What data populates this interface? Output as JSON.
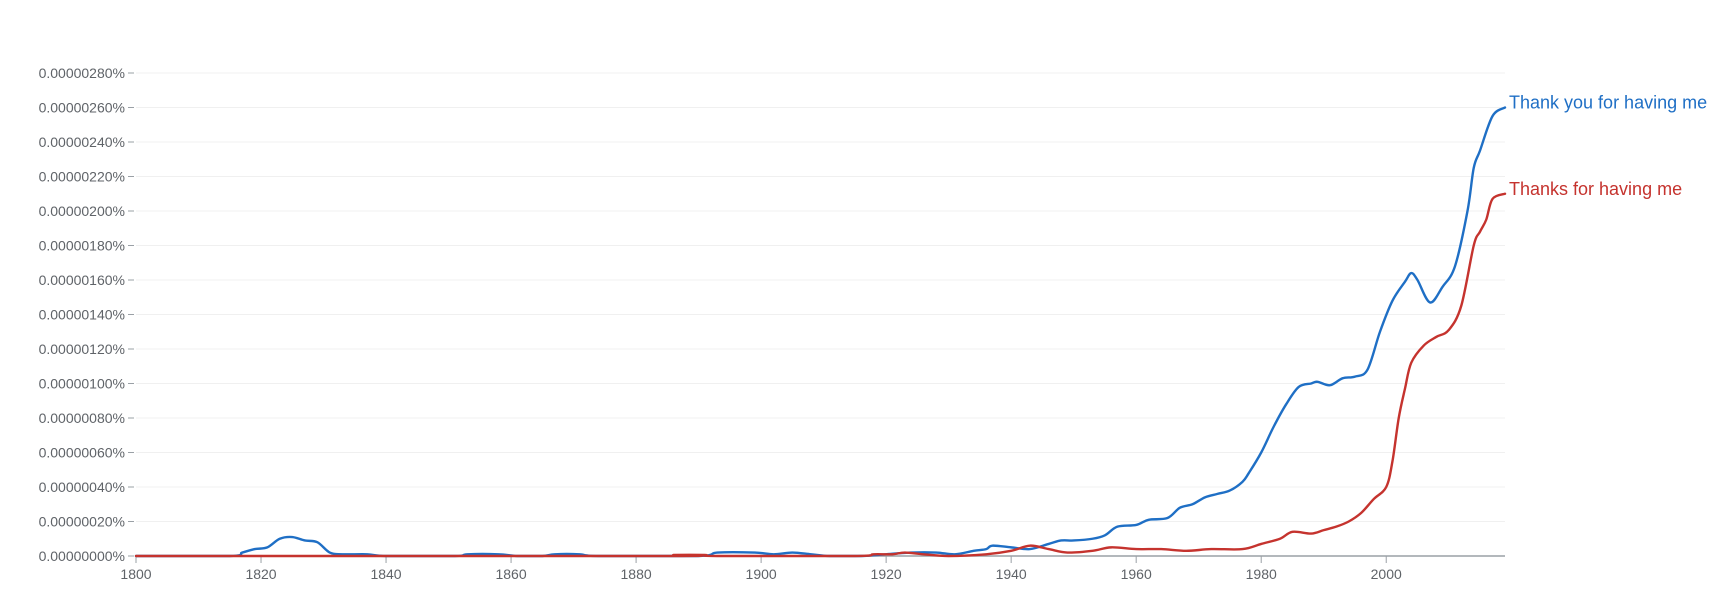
{
  "chart_data": {
    "type": "line",
    "title": "",
    "xlabel": "",
    "ylabel": "",
    "xlim": [
      1800,
      2019
    ],
    "ylim": [
      0,
      2.8e-06
    ],
    "grid": true,
    "legend": "labels at right end of lines",
    "y_ticks": [
      {
        "value": 0.0,
        "label": "0.00000000%"
      },
      {
        "value": 2e-07,
        "label": "0.00000020%"
      },
      {
        "value": 4e-07,
        "label": "0.00000040%"
      },
      {
        "value": 6e-07,
        "label": "0.00000060%"
      },
      {
        "value": 8e-07,
        "label": "0.00000080%"
      },
      {
        "value": 1e-06,
        "label": "0.00000100%"
      },
      {
        "value": 1.2e-06,
        "label": "0.00000120%"
      },
      {
        "value": 1.4e-06,
        "label": "0.00000140%"
      },
      {
        "value": 1.6e-06,
        "label": "0.00000160%"
      },
      {
        "value": 1.8e-06,
        "label": "0.00000180%"
      },
      {
        "value": 2e-06,
        "label": "0.00000200%"
      },
      {
        "value": 2.2e-06,
        "label": "0.00000220%"
      },
      {
        "value": 2.4e-06,
        "label": "0.00000240%"
      },
      {
        "value": 2.6e-06,
        "label": "0.00000260%"
      },
      {
        "value": 2.8e-06,
        "label": "0.00000280%"
      }
    ],
    "x_ticks": [
      {
        "value": 1800,
        "label": "1800"
      },
      {
        "value": 1820,
        "label": "1820"
      },
      {
        "value": 1840,
        "label": "1840"
      },
      {
        "value": 1860,
        "label": "1860"
      },
      {
        "value": 1880,
        "label": "1880"
      },
      {
        "value": 1900,
        "label": "1900"
      },
      {
        "value": 1920,
        "label": "1920"
      },
      {
        "value": 1940,
        "label": "1940"
      },
      {
        "value": 1960,
        "label": "1960"
      },
      {
        "value": 1980,
        "label": "1980"
      },
      {
        "value": 2000,
        "label": "2000"
      }
    ],
    "series": [
      {
        "name": "Thank you for having me",
        "color": "#1f6fc5",
        "points": [
          [
            1800,
            0
          ],
          [
            1815,
            0
          ],
          [
            1817,
            2e-08
          ],
          [
            1819,
            4e-08
          ],
          [
            1821,
            5e-08
          ],
          [
            1823,
            1e-07
          ],
          [
            1825,
            1.1e-07
          ],
          [
            1827,
            9e-08
          ],
          [
            1829,
            8e-08
          ],
          [
            1831,
            2e-08
          ],
          [
            1833,
            1e-08
          ],
          [
            1837,
            1e-08
          ],
          [
            1840,
            0
          ],
          [
            1851,
            0
          ],
          [
            1853,
            1e-08
          ],
          [
            1858,
            1e-08
          ],
          [
            1861,
            0
          ],
          [
            1865,
            0
          ],
          [
            1867,
            1e-08
          ],
          [
            1871,
            1e-08
          ],
          [
            1874,
            0
          ],
          [
            1890,
            0
          ],
          [
            1893,
            2e-08
          ],
          [
            1899,
            2e-08
          ],
          [
            1902,
            1e-08
          ],
          [
            1905,
            2e-08
          ],
          [
            1908,
            1e-08
          ],
          [
            1911,
            0
          ],
          [
            1916,
            0
          ],
          [
            1920,
            1e-08
          ],
          [
            1924,
            2e-08
          ],
          [
            1928,
            2e-08
          ],
          [
            1931,
            1e-08
          ],
          [
            1934,
            3e-08
          ],
          [
            1936,
            4e-08
          ],
          [
            1937,
            6e-08
          ],
          [
            1940,
            5e-08
          ],
          [
            1943,
            4e-08
          ],
          [
            1946,
            7e-08
          ],
          [
            1948,
            9e-08
          ],
          [
            1950,
            9e-08
          ],
          [
            1953,
            1e-07
          ],
          [
            1955,
            1.2e-07
          ],
          [
            1957,
            1.7e-07
          ],
          [
            1960,
            1.8e-07
          ],
          [
            1962,
            2.1e-07
          ],
          [
            1965,
            2.2e-07
          ],
          [
            1967,
            2.8e-07
          ],
          [
            1969,
            3e-07
          ],
          [
            1971,
            3.4e-07
          ],
          [
            1973,
            3.6e-07
          ],
          [
            1975,
            3.8e-07
          ],
          [
            1977,
            4.3e-07
          ],
          [
            1978,
            4.8e-07
          ],
          [
            1980,
            6e-07
          ],
          [
            1982,
            7.5e-07
          ],
          [
            1984,
            8.8e-07
          ],
          [
            1986,
            9.8e-07
          ],
          [
            1988,
            1e-06
          ],
          [
            1989,
            1.01e-06
          ],
          [
            1991,
            9.9e-07
          ],
          [
            1993,
            1.03e-06
          ],
          [
            1995,
            1.04e-06
          ],
          [
            1997,
            1.08e-06
          ],
          [
            1999,
            1.3e-06
          ],
          [
            2001,
            1.48e-06
          ],
          [
            2003,
            1.59e-06
          ],
          [
            2004,
            1.64e-06
          ],
          [
            2005,
            1.6e-06
          ],
          [
            2007,
            1.47e-06
          ],
          [
            2009,
            1.56e-06
          ],
          [
            2011,
            1.68e-06
          ],
          [
            2013,
            2e-06
          ],
          [
            2014,
            2.25e-06
          ],
          [
            2015,
            2.35e-06
          ],
          [
            2017,
            2.55e-06
          ],
          [
            2019,
            2.6e-06
          ]
        ]
      },
      {
        "name": "Thanks for having me",
        "color": "#c5332e",
        "points": [
          [
            1800,
            0
          ],
          [
            1884,
            0
          ],
          [
            1886,
            6e-09
          ],
          [
            1891,
            6e-09
          ],
          [
            1893,
            0
          ],
          [
            1915,
            0
          ],
          [
            1918,
            1e-08
          ],
          [
            1921,
            1e-08
          ],
          [
            1923,
            2e-08
          ],
          [
            1926,
            1e-08
          ],
          [
            1930,
            0
          ],
          [
            1936,
            1e-08
          ],
          [
            1940,
            3e-08
          ],
          [
            1943,
            6e-08
          ],
          [
            1946,
            4e-08
          ],
          [
            1949,
            2e-08
          ],
          [
            1953,
            3e-08
          ],
          [
            1956,
            5e-08
          ],
          [
            1960,
            4e-08
          ],
          [
            1964,
            4e-08
          ],
          [
            1968,
            3e-08
          ],
          [
            1972,
            4e-08
          ],
          [
            1977,
            4e-08
          ],
          [
            1980,
            7e-08
          ],
          [
            1983,
            1e-07
          ],
          [
            1985,
            1.4e-07
          ],
          [
            1988,
            1.3e-07
          ],
          [
            1990,
            1.5e-07
          ],
          [
            1992,
            1.7e-07
          ],
          [
            1994,
            2e-07
          ],
          [
            1996,
            2.5e-07
          ],
          [
            1998,
            3.3e-07
          ],
          [
            2000,
            4e-07
          ],
          [
            2001,
            5.5e-07
          ],
          [
            2002,
            8e-07
          ],
          [
            2003,
            9.7e-07
          ],
          [
            2004,
            1.12e-06
          ],
          [
            2006,
            1.22e-06
          ],
          [
            2008,
            1.27e-06
          ],
          [
            2010,
            1.31e-06
          ],
          [
            2012,
            1.45e-06
          ],
          [
            2014,
            1.8e-06
          ],
          [
            2015,
            1.88e-06
          ],
          [
            2016,
            1.95e-06
          ],
          [
            2017,
            2.07e-06
          ],
          [
            2019,
            2.1e-06
          ]
        ]
      }
    ]
  }
}
